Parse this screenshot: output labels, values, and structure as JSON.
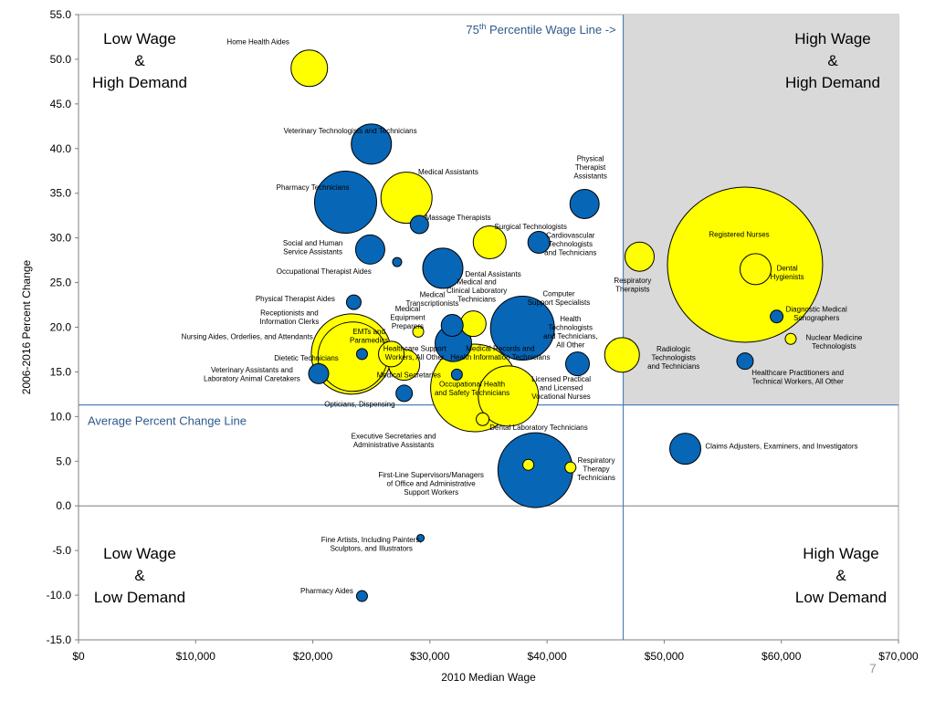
{
  "page_number": "7",
  "chart_data": {
    "type": "scatter",
    "bubble": true,
    "xlabel": "2010 Median Wage",
    "ylabel": "2006-2016 Percent Change",
    "xlim": [
      0,
      70000
    ],
    "ylim": [
      -15,
      55
    ],
    "x_ticks": [
      "$0",
      "$10,000",
      "$20,000",
      "$30,000",
      "$40,000",
      "$50,000",
      "$60,000",
      "$70,000"
    ],
    "y_ticks": [
      "55.0",
      "50.0",
      "45.0",
      "40.0",
      "35.0",
      "30.0",
      "25.0",
      "20.0",
      "15.0",
      "10.0",
      "5.0",
      "0.0",
      "-5.0",
      "-10.0",
      "-15.0"
    ],
    "colors": {
      "blue": "#0866b6",
      "yellow": "#ffff00",
      "outline": "#000000",
      "shade": "#d9d9d9",
      "refline": "#4f81bd"
    },
    "reference_lines": {
      "wage_75th_percentile": 46500,
      "wage_75th_label": "75th Percentile Wage Line ->",
      "average_percent_change": 11.3,
      "average_label": "Average Percent Change Line"
    },
    "quadrants": {
      "top_left": "Low Wage\n&\nHigh Demand",
      "top_right": "High Wage\n&\nHigh Demand",
      "bottom_left": "Low Wage\n&\nLow Demand",
      "bottom_right": "High Wage\n&\nLow Demand"
    },
    "points": [
      {
        "label": "Home Health Aides",
        "x": 19700,
        "y": 49,
        "r": 20,
        "color": "yellow",
        "lx": 18000,
        "ly": 52,
        "anchor": "end"
      },
      {
        "label": "Veterinary Technologists and Technicians",
        "x": 25000,
        "y": 40.5,
        "r": 22,
        "color": "blue",
        "lx": 23200,
        "ly": 42,
        "anchor": "middle"
      },
      {
        "label": "Medical Assistants",
        "x": 28000,
        "y": 34.5,
        "r": 28,
        "color": "yellow",
        "lx": 29000,
        "ly": 37.4,
        "anchor": "start"
      },
      {
        "label": "Pharmacy Technicians",
        "x": 22800,
        "y": 34,
        "r": 34,
        "color": "blue",
        "lx": 20000,
        "ly": 35.7,
        "anchor": "middle"
      },
      {
        "label": "Massage Therapists",
        "x": 29100,
        "y": 31.5,
        "r": 10,
        "color": "blue",
        "lx": 29600,
        "ly": 32.3,
        "anchor": "start"
      },
      {
        "label": "Surgical Technologists",
        "x": 35100,
        "y": 29.5,
        "r": 18,
        "color": "yellow",
        "lx": 35500,
        "ly": 31.3,
        "anchor": "start"
      },
      {
        "label": "Social and Human\nService Assistants",
        "x": 24900,
        "y": 28.7,
        "r": 16,
        "color": "blue",
        "lx": 20000,
        "ly": 29,
        "anchor": "middle"
      },
      {
        "label": "Occupational Therapist Aides",
        "x": 27200,
        "y": 27.3,
        "r": 5,
        "color": "blue",
        "lx": 25000,
        "ly": 26.3,
        "anchor": "end"
      },
      {
        "label": "Dental Assistants",
        "x": 31100,
        "y": 26.6,
        "r": 22,
        "color": "blue",
        "lx": 33000,
        "ly": 26,
        "anchor": "start"
      },
      {
        "label": "Cardiovascular\nTechnologists\nand Technicians",
        "x": 39300,
        "y": 29.5,
        "r": 12,
        "color": "blue",
        "lx": 42000,
        "ly": 29.4,
        "anchor": "middle"
      },
      {
        "label": "Physical\nTherapist\nAssistants",
        "x": 43200,
        "y": 33.8,
        "r": 16,
        "color": "blue",
        "lx": 43700,
        "ly": 38,
        "anchor": "middle"
      },
      {
        "label": "Physical Therapist Aides",
        "x": 23500,
        "y": 22.8,
        "r": 8,
        "color": "blue",
        "lx": 18500,
        "ly": 23.2,
        "anchor": "middle"
      },
      {
        "label": "Receptionists and\nInformation Clerks",
        "x": 23300,
        "y": 17,
        "r": 44,
        "color": "yellow",
        "lx": 18000,
        "ly": 21.2,
        "anchor": "middle"
      },
      {
        "label": "Nursing Aides, Orderlies, and Attendants",
        "x": 23400,
        "y": 16.7,
        "r": 38,
        "color": "yellow",
        "lx": 14400,
        "ly": 19,
        "anchor": "middle"
      },
      {
        "label": "EMTs and\nParamedics",
        "x": 24200,
        "y": 17,
        "r": 6,
        "color": "blue",
        "lx": 24800,
        "ly": 19.1,
        "anchor": "middle"
      },
      {
        "label": "Dietetic Technicians",
        "x": 26700,
        "y": 17,
        "r": 14,
        "color": "yellow",
        "lx": 22200,
        "ly": 16.6,
        "anchor": "end"
      },
      {
        "label": "Veterinary Assistants and\nLaboratory Animal Caretakers",
        "x": 20500,
        "y": 14.8,
        "r": 11,
        "color": "blue",
        "lx": 14800,
        "ly": 14.8,
        "anchor": "middle"
      },
      {
        "label": "Medical Secretaries",
        "x": 27800,
        "y": 15.8,
        "r": 17,
        "color": "yellow",
        "lx": 28200,
        "ly": 14.7,
        "anchor": "middle"
      },
      {
        "label": "Opticians, Dispensing",
        "x": 27800,
        "y": 12.6,
        "r": 9,
        "color": "blue",
        "lx": 24000,
        "ly": 11.4,
        "anchor": "middle"
      },
      {
        "label": "Medical\nTranscriptionists",
        "x": 31900,
        "y": 20.2,
        "r": 12,
        "color": "blue",
        "lx": 30200,
        "ly": 23.2,
        "anchor": "middle"
      },
      {
        "label": "Medical\nEquipment\nPreparers",
        "x": 29000,
        "y": 19.5,
        "r": 6,
        "color": "yellow",
        "lx": 28100,
        "ly": 21.2,
        "anchor": "middle"
      },
      {
        "label": "Medical and\nClinical Laboratory\nTechnicians",
        "x": 33700,
        "y": 20.4,
        "r": 14,
        "color": "yellow",
        "lx": 34000,
        "ly": 24.2,
        "anchor": "middle"
      },
      {
        "label": "Healthcare Support\nWorkers, All Other",
        "x": 32000,
        "y": 18.2,
        "r": 20,
        "color": "blue",
        "lx": 28700,
        "ly": 17.2,
        "anchor": "middle"
      },
      {
        "label": "Medical Records and\nHealth Information Technicians",
        "x": 33800,
        "y": 13.2,
        "r": 48,
        "color": "yellow",
        "lx": 36000,
        "ly": 17.2,
        "anchor": "middle"
      },
      {
        "label": "Computer\nSupport Specialists",
        "x": 37900,
        "y": 19.9,
        "r": 35,
        "color": "blue",
        "lx": 41000,
        "ly": 23.3,
        "anchor": "middle"
      },
      {
        "label": "Health\nTechnologists\nand Technicians,\nAll Other",
        "x": 42600,
        "y": 15.9,
        "r": 13,
        "color": "blue",
        "lx": 42000,
        "ly": 19.6,
        "anchor": "middle"
      },
      {
        "label": "Occupational Health\nand Safety Technicians",
        "x": 32300,
        "y": 14.7,
        "r": 6,
        "color": "blue",
        "lx": 33600,
        "ly": 13.2,
        "anchor": "middle"
      },
      {
        "label": "Licensed Practical\nand Licensed\nVocational Nurses",
        "x": 36700,
        "y": 12.3,
        "r": 33,
        "color": "yellow",
        "lx": 41200,
        "ly": 13.3,
        "anchor": "middle"
      },
      {
        "label": "Dental Laboratory Technicians",
        "x": 34500,
        "y": 9.7,
        "r": 7,
        "color": "yellow",
        "lx": 35100,
        "ly": 8.8,
        "anchor": "start"
      },
      {
        "label": "Executive Secretaries and\nAdministrative Assistants",
        "x": 38400,
        "y": 4.6,
        "r": 6,
        "color": "yellow",
        "lx": 26900,
        "ly": 7.4,
        "anchor": "middle"
      },
      {
        "label": "First-Line Supervisors/Managers\nof Office and Administrative\nSupport Workers",
        "x": 39000,
        "y": 4,
        "r": 41,
        "color": "blue",
        "lx": 30100,
        "ly": 2.6,
        "anchor": "middle"
      },
      {
        "label": "Respiratory\nTherapy\nTechnicians",
        "x": 42000,
        "y": 4.3,
        "r": 6,
        "color": "yellow",
        "lx": 44200,
        "ly": 4.2,
        "anchor": "middle"
      },
      {
        "label": "Claims Adjusters, Examiners, and Investigators",
        "x": 51800,
        "y": 6.4,
        "r": 17,
        "color": "blue",
        "lx": 53500,
        "ly": 6.7,
        "anchor": "start"
      },
      {
        "label": "Respiratory\nTherapists",
        "x": 47900,
        "y": 27.9,
        "r": 16,
        "color": "yellow",
        "lx": 47300,
        "ly": 24.8,
        "anchor": "middle"
      },
      {
        "label": "Radiologic\nTechnologists\nand Technicians",
        "x": 46400,
        "y": 16.9,
        "r": 19,
        "color": "yellow",
        "lx": 50800,
        "ly": 16.7,
        "anchor": "middle"
      },
      {
        "label": "Registered Nurses",
        "x": 56900,
        "y": 27,
        "r": 85,
        "color": "yellow",
        "lx": 56400,
        "ly": 30.4,
        "anchor": "middle"
      },
      {
        "label": "Dental\nHygienists",
        "x": 57800,
        "y": 26.5,
        "r": 17,
        "color": "yellow",
        "lx": 60500,
        "ly": 26.2,
        "anchor": "middle"
      },
      {
        "label": "Diagnostic Medical\nSonographers",
        "x": 59600,
        "y": 21.2,
        "r": 7,
        "color": "blue",
        "lx": 63000,
        "ly": 21.6,
        "anchor": "middle"
      },
      {
        "label": "Nuclear Medicine\nTechnologists",
        "x": 60800,
        "y": 18.7,
        "r": 6,
        "color": "yellow",
        "lx": 64500,
        "ly": 18.4,
        "anchor": "middle"
      },
      {
        "label": "Healthcare Practitioners and\nTechnical Workers, All Other",
        "x": 56900,
        "y": 16.2,
        "r": 9,
        "color": "blue",
        "lx": 61400,
        "ly": 14.5,
        "anchor": "middle"
      },
      {
        "label": "Fine Artists, Including Painters,\nSculptors, and Illustrators",
        "x": 29200,
        "y": -3.6,
        "r": 4,
        "color": "blue",
        "lx": 25000,
        "ly": -4.2,
        "anchor": "middle"
      },
      {
        "label": "Pharmacy Aides",
        "x": 24200,
        "y": -10.1,
        "r": 6,
        "color": "blue",
        "lx": 21200,
        "ly": -9.5,
        "anchor": "middle"
      }
    ]
  }
}
